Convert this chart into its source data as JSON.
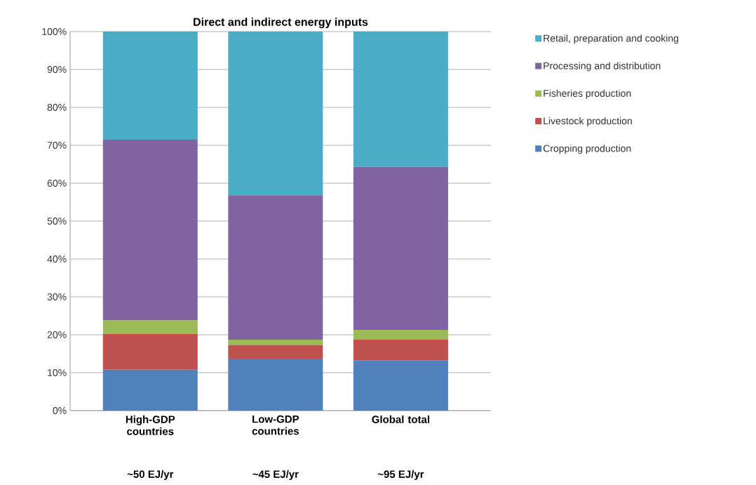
{
  "chart_data": {
    "type": "bar",
    "title": "Direct and indirect energy inputs",
    "stacked": true,
    "categories": [
      "High-GDP countries",
      "Low-GDP countries",
      "Global total"
    ],
    "series": [
      {
        "name": "Cropping production",
        "color": "#4f81bd",
        "values": [
          10.8,
          13.7,
          13.3
        ]
      },
      {
        "name": "Livestock production",
        "color": "#c0504d",
        "values": [
          9.4,
          3.6,
          5.4
        ]
      },
      {
        "name": "Fisheries production",
        "color": "#9bbb59",
        "values": [
          3.6,
          1.4,
          2.6
        ]
      },
      {
        "name": "Processing and distribution",
        "color": "#8064a2",
        "values": [
          47.7,
          38.1,
          43.0
        ]
      },
      {
        "name": "Retail, preparation and cooking",
        "color": "#4bacc6",
        "values": [
          28.5,
          43.2,
          35.7
        ]
      }
    ],
    "ylim": [
      0,
      100
    ],
    "yticks": [
      {
        "value": 0,
        "label": "0%"
      },
      {
        "value": 10,
        "label": "10%"
      },
      {
        "value": 20,
        "label": "20%"
      },
      {
        "value": 30,
        "label": "30%"
      },
      {
        "value": 40,
        "label": "40%"
      },
      {
        "value": 50,
        "label": "50%"
      },
      {
        "value": 60,
        "label": "60%"
      },
      {
        "value": 70,
        "label": "70%"
      },
      {
        "value": 80,
        "label": "80%"
      },
      {
        "value": 90,
        "label": "90%"
      },
      {
        "value": 100,
        "label": "100%"
      }
    ],
    "grid": "y",
    "legend": "top right",
    "annotations": [
      "~50 EJ/yr",
      "~45 EJ/yr",
      "~95 EJ/yr"
    ]
  }
}
